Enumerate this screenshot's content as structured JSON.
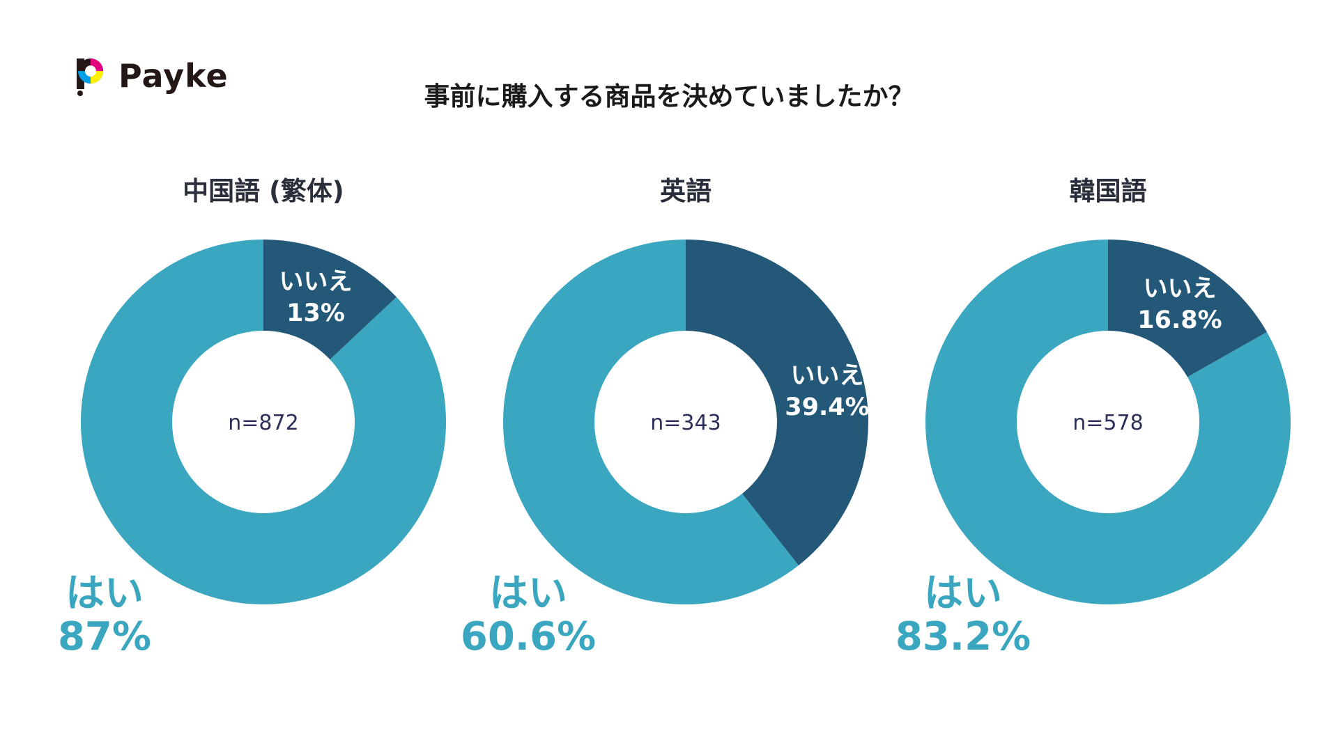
{
  "brand": {
    "name": "Payke"
  },
  "title": "事前に購入する商品を決めていましたか？",
  "colors": {
    "yes": "#3aa6bf",
    "no": "#245878",
    "center_text": "#2c2f5a",
    "background": "#ffffff"
  },
  "chart_data": [
    {
      "type": "pie",
      "title": "中国語 (繁体)",
      "center_label": "n=872",
      "slices": [
        {
          "label": "いいえ",
          "value": 13,
          "display": "13%"
        },
        {
          "label": "はい",
          "value": 87,
          "display": "87%"
        }
      ]
    },
    {
      "type": "pie",
      "title": "英語",
      "center_label": "n=343",
      "slices": [
        {
          "label": "いいえ",
          "value": 39.4,
          "display": "39.4%"
        },
        {
          "label": "はい",
          "value": 60.6,
          "display": "60.6%"
        }
      ]
    },
    {
      "type": "pie",
      "title": "韓国語",
      "center_label": "n=578",
      "slices": [
        {
          "label": "いいえ",
          "value": 16.8,
          "display": "16.8%"
        },
        {
          "label": "はい",
          "value": 83.2,
          "display": "83.2%"
        }
      ]
    }
  ]
}
